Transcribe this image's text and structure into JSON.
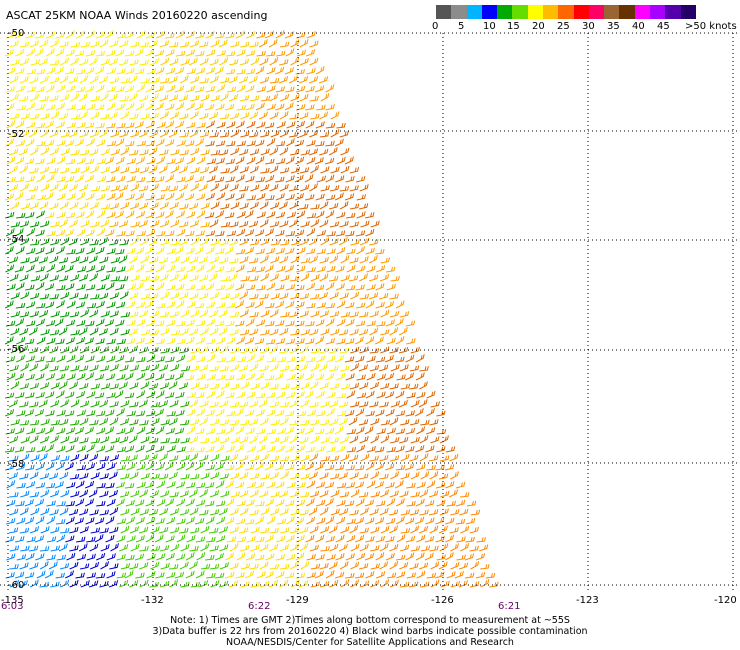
{
  "title": "ASCAT 25KM NOAA Winds 20160220 ascending",
  "legend": {
    "colors": [
      "#555555",
      "#8c8c8c",
      "#00b4ff",
      "#0000ff",
      "#00aa00",
      "#66dd00",
      "#ffff00",
      "#ffbb00",
      "#ff6600",
      "#ff0000",
      "#ff0066",
      "#996633",
      "#663300",
      "#ff00ff",
      "#aa00ff",
      "#5500aa",
      "#220066"
    ],
    "labels": [
      "0",
      "5",
      "10",
      "15",
      "20",
      "25",
      "30",
      "35",
      "40",
      "45",
      ">50 knots"
    ]
  },
  "axes": {
    "lat_labels": [
      "-50",
      "-52",
      "-54",
      "-56",
      "-58",
      "-60"
    ],
    "lon_labels": [
      "-135",
      "-132",
      "-129",
      "-126",
      "-123",
      "-120"
    ]
  },
  "times": [
    "6:03",
    "6:22",
    "6:21"
  ],
  "notes": {
    "line1": "Note: 1) Times are GMT 2)Times along bottom correspond to measurement at ~55S",
    "line2": "3)Data buffer is 22 hrs from 20160220 4) Black wind barbs indicate possible contamination",
    "line3": "NOAA/NESDIS/Center for Satellite Applications and Research"
  },
  "map": {
    "swath_type": "satellite-wind-barbs",
    "wind_regions": [
      {
        "region": "north",
        "speed_kt": "20-25",
        "color": "yellow"
      },
      {
        "region": "northeast",
        "speed_kt": "25-35",
        "color": "orange"
      },
      {
        "region": "west-central",
        "speed_kt": "15-20",
        "color": "green"
      },
      {
        "region": "southwest",
        "speed_kt": "10-15",
        "color": "blue"
      },
      {
        "region": "southeast",
        "speed_kt": "25-35",
        "color": "orange"
      }
    ]
  }
}
